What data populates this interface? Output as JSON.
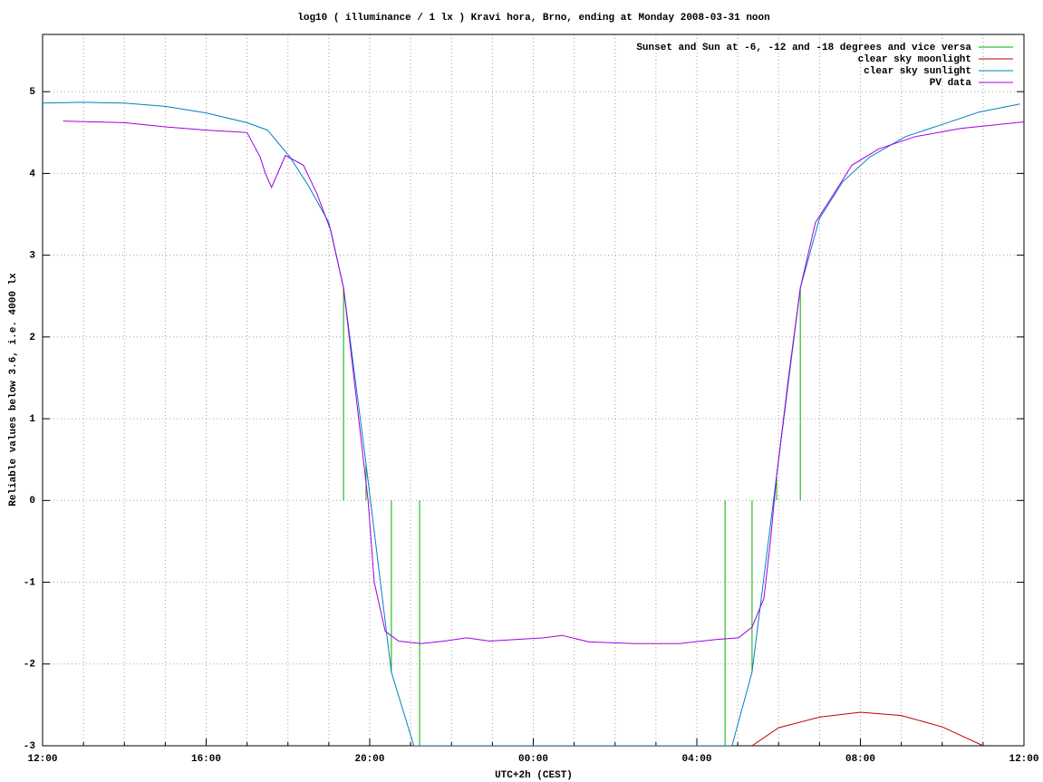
{
  "chart_data": {
    "type": "line",
    "title": "log10 ( illuminance / 1 lx ) Kravi hora, Brno, ending at Monday 2008-03-31 noon",
    "xlabel": "UTC+2h (CEST)",
    "ylabel": "Reliable values below 3.6, i.e. 4000 lx",
    "xlim": [
      0,
      24
    ],
    "ylim": [
      -3,
      5.7
    ],
    "xticks": [
      {
        "value": 0,
        "label": "12:00"
      },
      {
        "value": 4,
        "label": "16:00"
      },
      {
        "value": 8,
        "label": "20:00"
      },
      {
        "value": 12,
        "label": "00:00"
      },
      {
        "value": 16,
        "label": "04:00"
      },
      {
        "value": 20,
        "label": "08:00"
      },
      {
        "value": 24,
        "label": "12:00"
      }
    ],
    "xminorticks": [
      1,
      2,
      3,
      5,
      6,
      7,
      9,
      10,
      11,
      13,
      14,
      15,
      17,
      18,
      19,
      21,
      22,
      23
    ],
    "yticks": [
      -3,
      -2,
      -1,
      0,
      1,
      2,
      3,
      4,
      5
    ],
    "grid": true,
    "legend": "top-right",
    "series": [
      {
        "name": "Sunset and Sun at -6, -12 and -18 degrees and vice versa",
        "color": "#00b000",
        "style": "impulses",
        "x": [
          7.36,
          7.91,
          8.53,
          9.22,
          16.69,
          17.35,
          17.95,
          18.53
        ],
        "values": [
          2.6,
          0.45,
          -2.1,
          -3,
          -3,
          -2.1,
          0.3,
          2.6
        ]
      },
      {
        "name": "clear sky moonlight",
        "color": "#c00000",
        "style": "lines",
        "x": [
          17.35,
          18,
          19,
          20,
          21,
          22,
          23
        ],
        "values": [
          -3,
          -2.78,
          -2.65,
          -2.59,
          -2.63,
          -2.77,
          -3
        ]
      },
      {
        "name": "clear sky sunlight",
        "color": "#0080c0",
        "style": "lines",
        "x": [
          0,
          1,
          2,
          3,
          4,
          5,
          5.5,
          6.05,
          6.5,
          7.0,
          7.36,
          7.91,
          8.53,
          9.08,
          16.86,
          17.35,
          17.95,
          18.53,
          19.0,
          19.57,
          20.23,
          21.1,
          22.0,
          22.9,
          23.9
        ],
        "values": [
          4.86,
          4.87,
          4.86,
          4.82,
          4.74,
          4.62,
          4.53,
          4.2,
          3.85,
          3.4,
          2.6,
          0.45,
          -2.1,
          -3,
          -3,
          -2.1,
          0.3,
          2.6,
          3.45,
          3.9,
          4.2,
          4.45,
          4.6,
          4.75,
          4.85
        ]
      },
      {
        "name": "PV data",
        "color": "#a000e0",
        "style": "lines",
        "x": [
          0.5,
          2,
          3,
          4,
          5,
          5.32,
          5.45,
          5.6,
          5.94,
          6.38,
          6.71,
          7.05,
          7.36,
          7.73,
          7.96,
          8.11,
          8.38,
          8.71,
          9.26,
          9.82,
          10.37,
          10.93,
          12.25,
          12.7,
          13.36,
          14.47,
          15.58,
          16.47,
          17.02,
          17.35,
          17.64,
          17.8,
          17.95,
          18.24,
          18.53,
          18.9,
          19.35,
          19.79,
          20.45,
          21.34,
          22.45,
          24
        ],
        "values": [
          4.64,
          4.62,
          4.57,
          4.53,
          4.5,
          4.2,
          4.0,
          3.83,
          4.22,
          4.1,
          3.75,
          3.3,
          2.6,
          1.0,
          0.0,
          -1.0,
          -1.6,
          -1.72,
          -1.75,
          -1.72,
          -1.68,
          -1.72,
          -1.68,
          -1.65,
          -1.73,
          -1.75,
          -1.75,
          -1.7,
          -1.68,
          -1.55,
          -1.2,
          -0.5,
          0.3,
          1.5,
          2.6,
          3.4,
          3.75,
          4.1,
          4.3,
          4.45,
          4.55,
          4.63
        ]
      }
    ]
  }
}
